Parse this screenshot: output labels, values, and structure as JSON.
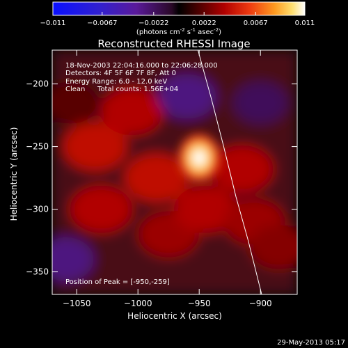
{
  "colorbar": {
    "ticks": [
      "-0.011",
      "-0.0067",
      "-0.0022",
      "0.0022",
      "0.0067",
      "0.011"
    ],
    "range": [
      -0.011,
      0.011
    ],
    "units_pre": "(photons cm",
    "units_exp1": "-2",
    "units_mid1": " s",
    "units_exp2": "-1",
    "units_mid2": " asec",
    "units_exp3": "-2",
    "units_post": ")"
  },
  "chart_data": {
    "type": "heatmap",
    "title": "Reconstructed RHESSI Image",
    "xlabel": "Heliocentric X (arcsec)",
    "ylabel": "Heliocentric Y (arcsec)",
    "xlim": [
      -1070,
      -870
    ],
    "ylim": [
      -368,
      -173
    ],
    "x_ticks": [
      -1050,
      -1000,
      -950,
      -900
    ],
    "y_ticks": [
      -200,
      -250,
      -300,
      -350
    ],
    "x_tick_labels": [
      "−1050",
      "−1000",
      "−950",
      "−900"
    ],
    "y_tick_labels": [
      "−200",
      "−250",
      "−300",
      "−350"
    ],
    "value_range": [
      -0.011,
      0.011
    ],
    "peak": {
      "x": -950,
      "y": -259,
      "value": 0.011
    },
    "limb_arc": [
      [
        -951,
        -173
      ],
      [
        -940,
        -212
      ],
      [
        -930,
        -250
      ],
      [
        -920,
        -290
      ],
      [
        -910,
        -325
      ],
      [
        -899,
        -368
      ]
    ],
    "regions": [
      {
        "x": -1035,
        "y": -250,
        "value": 0.0045
      },
      {
        "x": -1005,
        "y": -222,
        "value": 0.004
      },
      {
        "x": -1030,
        "y": -300,
        "value": 0.004
      },
      {
        "x": -985,
        "y": -275,
        "value": 0.0045
      },
      {
        "x": -975,
        "y": -320,
        "value": 0.0035
      },
      {
        "x": -945,
        "y": -300,
        "value": 0.004
      },
      {
        "x": -915,
        "y": -268,
        "value": 0.004
      },
      {
        "x": -905,
        "y": -310,
        "value": 0.0035
      },
      {
        "x": -885,
        "y": -330,
        "value": 0.003
      },
      {
        "x": -1055,
        "y": -215,
        "value": 0.002
      },
      {
        "x": -1060,
        "y": -340,
        "value": -0.003
      },
      {
        "x": -960,
        "y": -210,
        "value": -0.003
      },
      {
        "x": -900,
        "y": -215,
        "value": -0.002
      }
    ]
  },
  "annotations": {
    "line1": "18-Nov-2003 22:04:16.000 to 22:06:28.000",
    "line2": "Detectors: 4F 5F 6F 7F 8F, Att 0",
    "line3": "Energy Range: 6.0 - 12.0 keV",
    "line4_a": "Clean",
    "line4_b": "Total counts: 1.56E+04",
    "peak_label": "Position of Peak = [-950,-259]"
  },
  "footer": {
    "timestamp": "29-May-2013 05:17"
  }
}
